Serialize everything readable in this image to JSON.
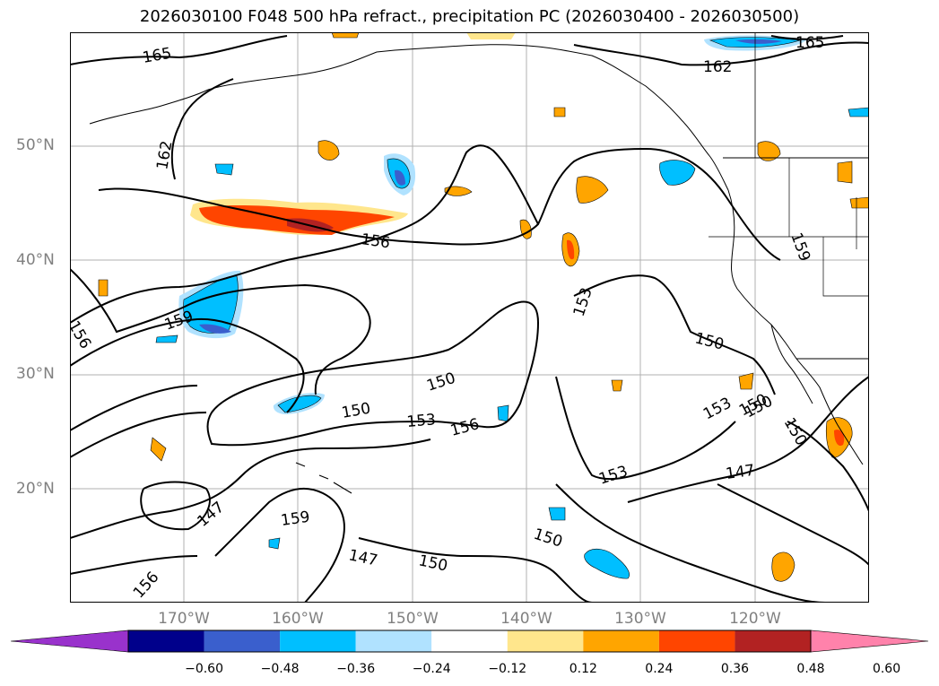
{
  "title": "2026030100 F048 500 hPa refract., precipitation PC (2026030400 - 2026030500)",
  "lat_labels": [
    "50°N",
    "40°N",
    "30°N",
    "20°N"
  ],
  "lon_labels": [
    "170°W",
    "160°W",
    "150°W",
    "140°W",
    "130°W",
    "120°W"
  ],
  "contour_labels": [
    "165",
    "165",
    "162",
    "162",
    "156",
    "159",
    "156",
    "159",
    "150",
    "150",
    "153",
    "156",
    "153",
    "150",
    "150",
    "153",
    "150",
    "150",
    "147",
    "153",
    "147",
    "159",
    "150",
    "147",
    "150",
    "156"
  ],
  "colorbar": {
    "ticks": [
      "−0.60",
      "−0.48",
      "−0.36",
      "−0.24",
      "−0.12",
      "0.12",
      "0.24",
      "0.36",
      "0.48",
      "0.60"
    ],
    "colors": [
      "#9932CC",
      "#00008B",
      "#3A5FCD",
      "#00BFFF",
      "#B0E2FF",
      "#FFFFFF",
      "#FFE68C",
      "#FFA500",
      "#FF4500",
      "#B22222",
      "#FF82AB"
    ]
  },
  "colors": {
    "grid": "#b0b0b0",
    "contour": "#000000",
    "tick_label": "#808080"
  }
}
